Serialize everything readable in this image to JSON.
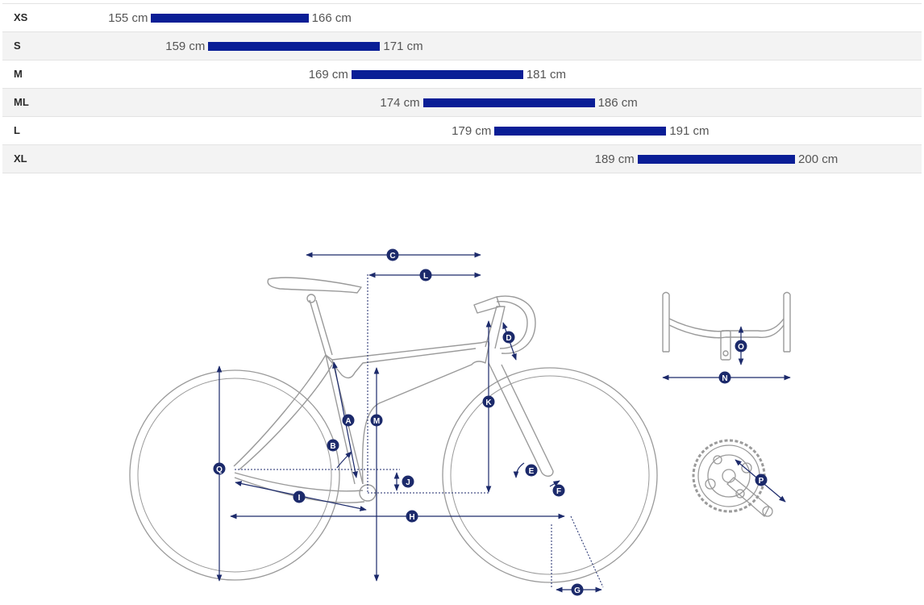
{
  "size_chart": {
    "axis_min_cm": 145,
    "axis_max_cm": 208,
    "rows": [
      {
        "size": "XS",
        "min": 155,
        "max": 166,
        "min_label": "155 cm",
        "max_label": "166 cm"
      },
      {
        "size": "S",
        "min": 159,
        "max": 171,
        "min_label": "159 cm",
        "max_label": "171 cm"
      },
      {
        "size": "M",
        "min": 169,
        "max": 181,
        "min_label": "169 cm",
        "max_label": "181 cm"
      },
      {
        "size": "ML",
        "min": 174,
        "max": 186,
        "min_label": "174 cm",
        "max_label": "186 cm"
      },
      {
        "size": "L",
        "min": 179,
        "max": 191,
        "min_label": "179 cm",
        "max_label": "191 cm"
      },
      {
        "size": "XL",
        "min": 189,
        "max": 200,
        "min_label": "189 cm",
        "max_label": "200 cm"
      }
    ]
  },
  "diagram": {
    "labels": {
      "A": "A",
      "B": "B",
      "C": "C",
      "D": "D",
      "E": "E",
      "F": "F",
      "G": "G",
      "H": "H",
      "I": "I",
      "J": "J",
      "K": "K",
      "L": "L",
      "M": "M",
      "N": "N",
      "O": "O",
      "P": "P",
      "Q": "Q"
    }
  },
  "colors": {
    "bar": "#0a1e96",
    "marker": "#1c2a6b",
    "outline": "#9a9a9a"
  }
}
